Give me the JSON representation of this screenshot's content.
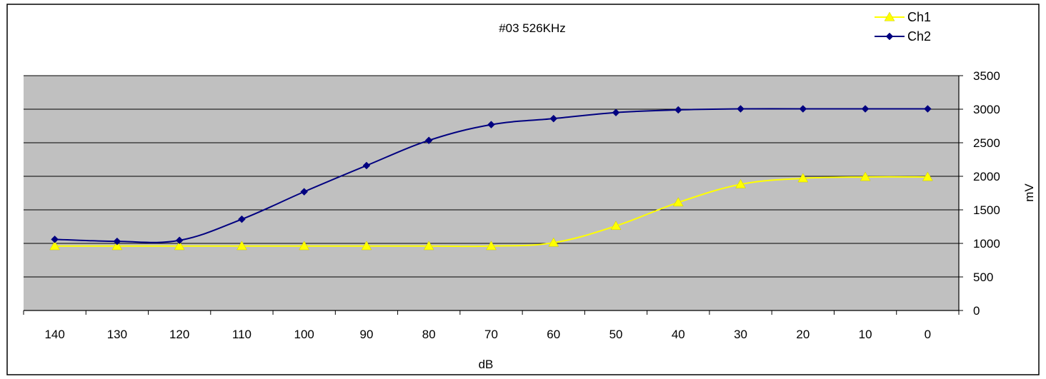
{
  "chart_data": {
    "type": "line",
    "title": "#03 526KHz",
    "xlabel": "dB",
    "ylabel": "mV",
    "categories": [
      "140",
      "130",
      "120",
      "110",
      "100",
      "90",
      "80",
      "70",
      "60",
      "50",
      "40",
      "30",
      "20",
      "10",
      "0"
    ],
    "ylim": [
      0,
      3500
    ],
    "yticks": [
      "0",
      "500",
      "1000",
      "1500",
      "2000",
      "2500",
      "3000",
      "3500"
    ],
    "grid": "horizontal",
    "legend_position": "top-right",
    "series": [
      {
        "name": "Ch1",
        "color": "#ffff00",
        "marker": "triangle",
        "values": [
          960,
          960,
          960,
          960,
          960,
          960,
          960,
          960,
          1010,
          1260,
          1610,
          1880,
          1970,
          1990,
          1990
        ]
      },
      {
        "name": "Ch2",
        "color": "#000080",
        "marker": "diamond",
        "values": [
          1060,
          1030,
          1045,
          1360,
          1770,
          2160,
          2535,
          2770,
          2860,
          2950,
          2990,
          3005,
          3005,
          3005,
          3005
        ]
      }
    ],
    "plot_background": "#c0c0c0"
  }
}
